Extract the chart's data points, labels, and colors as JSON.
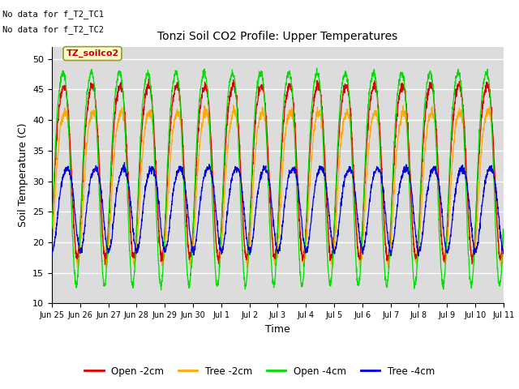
{
  "title": "Tonzi Soil CO2 Profile: Upper Temperatures",
  "xlabel": "Time",
  "ylabel": "Soil Temperature (C)",
  "ylim": [
    10,
    52
  ],
  "yticks": [
    10,
    15,
    20,
    25,
    30,
    35,
    40,
    45,
    50
  ],
  "background_color": "#dcdcdc",
  "text_annotations": [
    "No data for f_T2_TC1",
    "No data for f_T2_TC2"
  ],
  "box_label": "TZ_soilco2",
  "legend_entries": [
    "Open -2cm",
    "Tree -2cm",
    "Open -4cm",
    "Tree -4cm"
  ],
  "legend_colors": [
    "#dd0000",
    "#ffaa00",
    "#00dd00",
    "#0000dd"
  ],
  "x_tick_labels": [
    "Jun 25",
    "Jun 26",
    "Jun 27",
    "Jun 28",
    "Jun 29",
    "Jun 30",
    "Jul 1",
    "Jul 2",
    "Jul 3",
    "Jul 4",
    "Jul 5",
    "Jul 6",
    "Jul 7",
    "Jul 8",
    "Jul 9",
    "Jul 10",
    "Jul 11"
  ],
  "n_days": 16,
  "pts_per_day": 144
}
